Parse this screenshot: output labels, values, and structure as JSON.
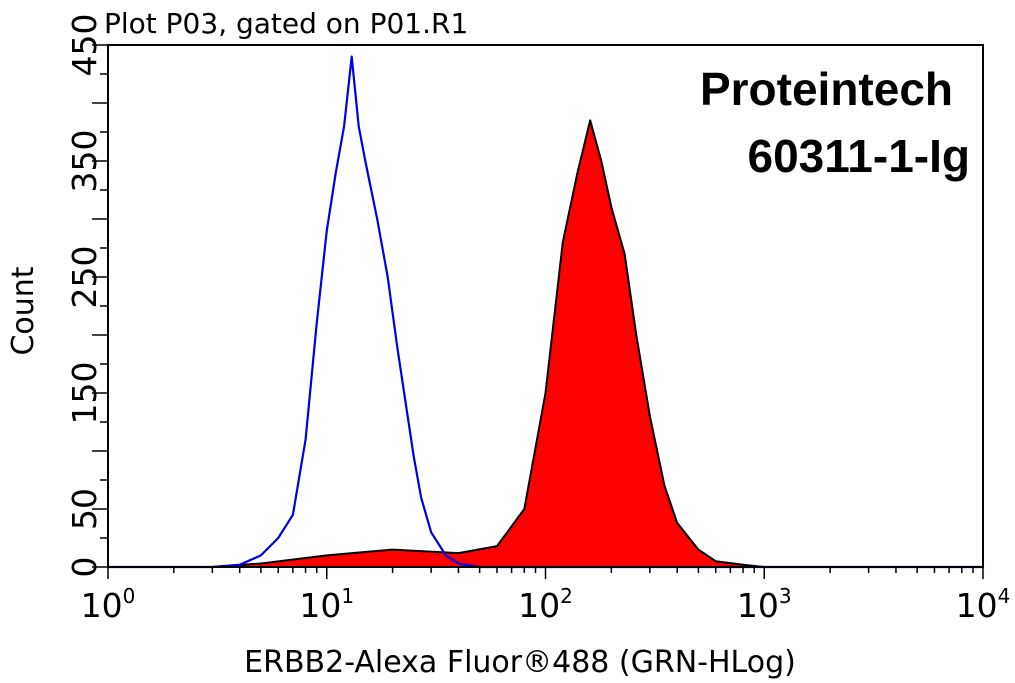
{
  "chart_data": {
    "type": "area",
    "title": "Plot P03, gated on P01.R1",
    "xlabel": "ERBB2-Alexa Fluor®488 (GRN-HLog)",
    "ylabel": "Count",
    "x_scale": "log",
    "xlim": [
      1,
      10000
    ],
    "ylim": [
      0,
      450
    ],
    "x_ticks": [
      {
        "value": 1,
        "base": "10",
        "exp": "0"
      },
      {
        "value": 10,
        "base": "10",
        "exp": "1"
      },
      {
        "value": 100,
        "base": "10",
        "exp": "2"
      },
      {
        "value": 1000,
        "base": "10",
        "exp": "3"
      },
      {
        "value": 10000,
        "base": "10",
        "exp": "4"
      }
    ],
    "y_ticks": [
      "0",
      "50",
      "150",
      "250",
      "350",
      "450"
    ],
    "annotations": [
      "Proteintech",
      "60311-1-Ig"
    ],
    "series": [
      {
        "style": "outline",
        "color": "#0000e6",
        "points": [
          [
            1,
            0
          ],
          [
            3,
            0
          ],
          [
            4,
            2
          ],
          [
            5,
            10
          ],
          [
            6,
            25
          ],
          [
            7,
            45
          ],
          [
            8,
            110
          ],
          [
            9,
            210
          ],
          [
            10,
            290
          ],
          [
            11,
            340
          ],
          [
            12,
            380
          ],
          [
            13,
            440
          ],
          [
            14,
            380
          ],
          [
            15,
            350
          ],
          [
            17,
            300
          ],
          [
            19,
            250
          ],
          [
            21,
            190
          ],
          [
            23,
            140
          ],
          [
            25,
            95
          ],
          [
            27,
            60
          ],
          [
            30,
            30
          ],
          [
            35,
            10
          ],
          [
            40,
            3
          ],
          [
            50,
            0
          ],
          [
            10000,
            0
          ]
        ]
      },
      {
        "style": "filled",
        "color": "#ff0000",
        "outline": "#000000",
        "points": [
          [
            1,
            0
          ],
          [
            3,
            0
          ],
          [
            5,
            3
          ],
          [
            10,
            10
          ],
          [
            20,
            15
          ],
          [
            40,
            12
          ],
          [
            60,
            18
          ],
          [
            80,
            50
          ],
          [
            100,
            150
          ],
          [
            120,
            280
          ],
          [
            140,
            340
          ],
          [
            160,
            385
          ],
          [
            180,
            350
          ],
          [
            200,
            310
          ],
          [
            230,
            270
          ],
          [
            260,
            200
          ],
          [
            300,
            130
          ],
          [
            350,
            70
          ],
          [
            400,
            38
          ],
          [
            500,
            15
          ],
          [
            600,
            5
          ],
          [
            800,
            2
          ],
          [
            1000,
            0
          ],
          [
            10000,
            0
          ]
        ]
      }
    ]
  }
}
